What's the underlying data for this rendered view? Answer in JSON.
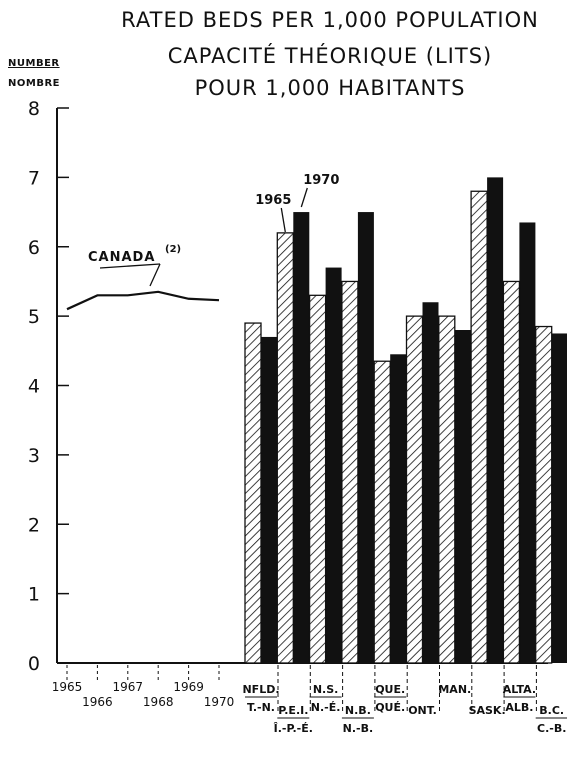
{
  "chart_data": {
    "type": "bar",
    "title": "RATED BEDS PER 1,000 POPULATION",
    "subtitle_line1": "CAPACITÉ THÉORIQUE (LITS)",
    "subtitle_line2": "POUR 1,000 HABITANTS",
    "ylabel_en": "NUMBER",
    "ylabel_fr": "NOMBRE",
    "ylim": [
      0,
      8
    ],
    "yticks": [
      "0",
      "1",
      "2",
      "3",
      "4",
      "5",
      "6",
      "7",
      "8"
    ],
    "categories": [
      {
        "top": "NFLD.",
        "bottom": "T.-N."
      },
      {
        "top": "P.E.I.",
        "bottom": "Î.-P.-É."
      },
      {
        "top": "N.S.",
        "bottom": "N.-É."
      },
      {
        "top": "N.B.",
        "bottom": "N.-B."
      },
      {
        "top": "QUE.",
        "bottom": "QUÉ."
      },
      {
        "top": "ONT.",
        "bottom": ""
      },
      {
        "top": "MAN.",
        "bottom": ""
      },
      {
        "top": "SASK.",
        "bottom": ""
      },
      {
        "top": "ALTA.",
        "bottom": "ALB."
      },
      {
        "top": "B.C.",
        "bottom": "C.-B."
      }
    ],
    "series": [
      {
        "name": "1965",
        "pattern": "hatched",
        "values": [
          4.9,
          6.2,
          5.3,
          5.5,
          4.35,
          5.0,
          5.0,
          6.8,
          5.5,
          4.85
        ]
      },
      {
        "name": "1970",
        "pattern": "solid",
        "values": [
          4.7,
          6.5,
          5.7,
          6.5,
          4.45,
          5.2,
          4.8,
          7.0,
          6.35,
          4.75
        ]
      }
    ],
    "canada_line": {
      "label": "CANADA",
      "note": "(2)",
      "years": [
        "1965",
        "1966",
        "1967",
        "1968",
        "1969",
        "1970"
      ],
      "x": [
        1965,
        1966,
        1967,
        1968,
        1969,
        1970
      ],
      "values": [
        5.1,
        5.3,
        5.3,
        5.35,
        5.25,
        5.23
      ]
    },
    "grid": false,
    "legend_placement": "annotations on P.E.I. bars"
  },
  "colors": {
    "ink": "#111111",
    "paper": "#ffffff"
  }
}
